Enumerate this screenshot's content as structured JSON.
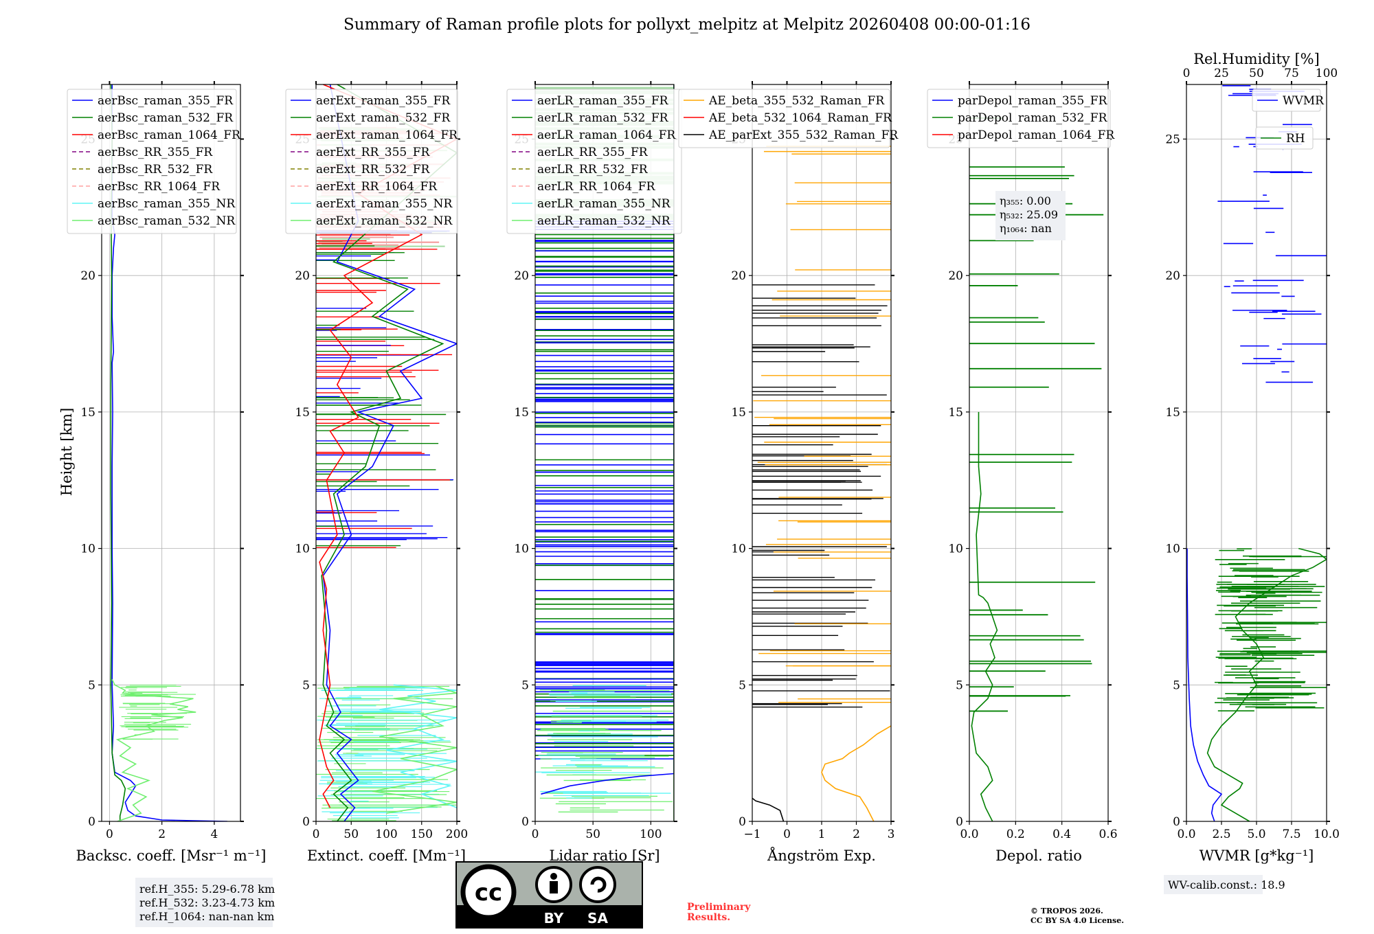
{
  "figure": {
    "title": "Summary of Raman profile plots for pollyxt_melpitz at Melpitz 20260408 00:00-01:16",
    "ylabel": "Height [km]",
    "ref_info": [
      "ref.H_355: 5.29-6.78 km",
      "ref.H_532: 3.23-4.73 km",
      "ref.H_1064: nan-nan km"
    ],
    "wv_calib": "WV-calib.const.: 18.9",
    "preliminary": [
      "Preliminary",
      "Results."
    ],
    "copyright": [
      "© TROPOS 2026.",
      "CC BY SA 4.0 License."
    ],
    "license_badge": {
      "cc": "cc",
      "by": "BY",
      "sa": "SA"
    },
    "colors": {
      "blue": "#0000ff",
      "green": "#008000",
      "red": "#ff0000",
      "purple": "#800080",
      "olive": "#808000",
      "salmon": "#ff9f9f",
      "cyan": "#5ff5f5",
      "lightgreen": "#6fef6f",
      "orange": "#ffa500",
      "magenta": "#ff00ff",
      "black": "#000000"
    }
  },
  "chart_data": [
    {
      "type": "line",
      "name": "backscatter",
      "xlabel": "Backsc. coeff. [Msr⁻¹ m⁻¹]",
      "xlim": [
        -0.3,
        5
      ],
      "xticks": [
        0,
        2,
        4
      ],
      "xtick_labels": [
        "0",
        "2",
        "4"
      ],
      "ylim": [
        0,
        27
      ],
      "yticks": [
        0,
        5,
        10,
        15,
        20,
        25
      ],
      "ytick_labels": [
        "0",
        "5",
        "10",
        "15",
        "20",
        "25"
      ],
      "legend": [
        "aerBsc_raman_355_FR",
        "aerBsc_raman_532_FR",
        "aerBsc_raman_1064_FR",
        "aerBsc_RR_355_FR",
        "aerBsc_RR_532_FR",
        "aerBsc_RR_1064_FR",
        "aerBsc_raman_355_NR",
        "aerBsc_raman_532_NR"
      ],
      "series": [
        {
          "name": "aerBsc_raman_355_FR",
          "x": [
            4.5,
            2.0,
            1.0,
            0.7,
            0.6,
            0.8,
            1.0,
            0.8,
            0.5,
            0.2,
            0.1,
            0.15,
            0.1,
            0.12,
            0.1,
            0.1,
            0.12,
            0.1,
            0.15,
            0.1,
            0.1,
            0.15,
            0.2,
            0.1,
            0.1
          ],
          "y": [
            0,
            0.05,
            0.2,
            0.4,
            0.7,
            1.0,
            1.3,
            1.5,
            1.65,
            1.8,
            2.5,
            3.5,
            5,
            8,
            10,
            13,
            15,
            16.8,
            17.2,
            18.5,
            20,
            21,
            21.5,
            22,
            27
          ]
        },
        {
          "name": "aerBsc_raman_532_FR",
          "x": [
            0.4,
            0.4,
            0.5,
            0.6,
            0.45,
            0.2,
            0.1,
            0.05,
            0.08,
            0.05,
            0.05,
            0.08,
            0.06,
            0.1,
            0.05
          ],
          "y": [
            0,
            0.2,
            0.6,
            1.2,
            1.5,
            1.7,
            2.5,
            5,
            8,
            12,
            16,
            20,
            22,
            25,
            27
          ]
        },
        {
          "name": "aerBsc_raman_532_NR",
          "x": [
            0.3,
            1.2,
            0.9,
            1.4,
            0.7,
            1.5,
            0.5,
            1.0,
            0.4,
            0.8,
            0.3,
            1.7,
            1.4,
            2.1,
            2.8,
            1.6,
            3.3,
            2.6,
            3.0,
            2.3,
            2.8,
            3.2,
            1.5,
            0.5,
            0.6,
            0.4,
            0.2,
            0.1
          ],
          "y": [
            0,
            0.3,
            0.6,
            0.9,
            1.2,
            1.5,
            1.8,
            2.1,
            2.4,
            2.7,
            3.0,
            3.3,
            3.5,
            3.7,
            3.8,
            3.9,
            4.0,
            4.1,
            4.2,
            4.3,
            4.4,
            4.5,
            4.6,
            4.7,
            4.8,
            4.9,
            5.0,
            5.2
          ]
        }
      ]
    },
    {
      "type": "line",
      "name": "extinction",
      "xlabel": "Extinct. coeff. [Mm⁻¹]",
      "xlim": [
        0,
        200
      ],
      "xticks": [
        0,
        50,
        100,
        150,
        200
      ],
      "xtick_labels": [
        "0",
        "50",
        "100",
        "150",
        "200"
      ],
      "ylim": [
        0,
        27
      ],
      "yticks": [
        0,
        5,
        10,
        15,
        20,
        25
      ],
      "ytick_labels": [
        "0",
        "5",
        "10",
        "15",
        "20",
        "25"
      ],
      "legend": [
        "aerExt_raman_355_FR",
        "aerExt_raman_532_FR",
        "aerExt_raman_1064_FR",
        "aerExt_RR_355_FR",
        "aerExt_RR_532_FR",
        "aerExt_RR_1064_FR",
        "aerExt_raman_355_NR",
        "aerExt_raman_532_NR"
      ],
      "series": [
        {
          "name": "aerExt_raman_355_FR",
          "x": [
            40,
            55,
            35,
            60,
            45,
            30,
            50,
            20,
            35,
            15,
            20,
            10,
            50,
            30,
            80,
            110,
            60,
            150,
            120,
            200,
            90,
            140,
            30,
            60,
            20
          ],
          "y": [
            0,
            0.5,
            1.0,
            1.5,
            2.0,
            2.5,
            3.0,
            3.5,
            4.0,
            5.0,
            7.0,
            9.0,
            10.5,
            12.0,
            13.0,
            14.5,
            15.0,
            15.5,
            16.5,
            17.5,
            18.5,
            19.5,
            20.5,
            22.0,
            27
          ]
        },
        {
          "name": "aerExt_raman_532_FR",
          "x": [
            30,
            45,
            25,
            50,
            35,
            20,
            40,
            15,
            25,
            10,
            15,
            8,
            40,
            25,
            70,
            90,
            50,
            120,
            100,
            180,
            80,
            130,
            25,
            200,
            30
          ],
          "y": [
            0,
            0.5,
            1.0,
            1.5,
            2.0,
            2.5,
            3.0,
            3.5,
            4.0,
            5.0,
            7.0,
            9.0,
            10.5,
            12.0,
            13.0,
            14.5,
            15.0,
            15.5,
            16.5,
            17.5,
            18.5,
            19.5,
            20.5,
            24.5,
            27
          ]
        },
        {
          "name": "aerExt_raman_1064_FR",
          "x": [
            20,
            10,
            25,
            15,
            10,
            5,
            20,
            10,
            15,
            5,
            30,
            15,
            40,
            20,
            60,
            30,
            50,
            20,
            80,
            40,
            150,
            60,
            200,
            10
          ],
          "y": [
            0.5,
            1.0,
            1.5,
            2.0,
            2.5,
            3.0,
            5.0,
            7.0,
            8.5,
            9.5,
            10.5,
            12.5,
            13.5,
            14.3,
            14.8,
            16.0,
            17.0,
            18.0,
            19.0,
            20.0,
            21.5,
            23.0,
            25.0,
            27
          ]
        },
        {
          "name": "aerExt_raman_355_NR",
          "x": [
            200,
            150,
            190,
            120,
            200,
            100,
            180,
            140,
            200,
            90,
            170,
            130,
            200,
            110
          ],
          "y": [
            0.5,
            1.0,
            1.3,
            1.8,
            2.2,
            2.6,
            3.0,
            3.4,
            3.8,
            4.1,
            4.4,
            4.6,
            4.8,
            5.0
          ]
        },
        {
          "name": "aerExt_raman_532_NR",
          "x": [
            100,
            200,
            80,
            160,
            200,
            120,
            200,
            90,
            180,
            150,
            200,
            110,
            200,
            170
          ],
          "y": [
            0.3,
            0.7,
            1.1,
            1.5,
            1.9,
            2.3,
            2.7,
            3.1,
            3.5,
            3.9,
            4.2,
            4.5,
            4.7,
            4.95
          ]
        }
      ]
    },
    {
      "type": "line",
      "name": "lidar_ratio",
      "xlabel": "Lidar ratio [Sr]",
      "xlim": [
        0,
        120
      ],
      "xticks": [
        0,
        50,
        100
      ],
      "xtick_labels": [
        "0",
        "50",
        "100"
      ],
      "ylim": [
        0,
        27
      ],
      "yticks": [
        0,
        5,
        10,
        15,
        20,
        25
      ],
      "ytick_labels": [
        "0",
        "5",
        "10",
        "15",
        "20",
        "25"
      ],
      "legend": [
        "aerLR_raman_355_FR",
        "aerLR_raman_532_FR",
        "aerLR_raman_1064_FR",
        "aerLR_RR_355_FR",
        "aerLR_RR_532_FR",
        "aerLR_RR_1064_FR",
        "aerLR_raman_355_NR",
        "aerLR_raman_532_NR"
      ],
      "series": [
        {
          "name": "aerLR_raman_355_FR",
          "x": [
            5,
            30,
            60,
            90,
            120,
            120
          ],
          "y": [
            1.0,
            1.3,
            1.5,
            1.65,
            1.75,
            27
          ]
        },
        {
          "name": "aerLR_raman_532_FR",
          "x": [
            120,
            120
          ],
          "y": [
            0,
            27
          ]
        }
      ]
    },
    {
      "type": "line",
      "name": "angstrom",
      "xlabel": "Ångström Exp.",
      "xlim": [
        -1,
        3
      ],
      "xticks": [
        -1,
        0,
        1,
        2,
        3
      ],
      "xtick_labels": [
        "−1",
        "0",
        "1",
        "2",
        "3"
      ],
      "ylim": [
        0,
        27
      ],
      "yticks": [
        0,
        5,
        10,
        15,
        20,
        25
      ],
      "ytick_labels": [
        "0",
        "5",
        "10",
        "15",
        "20",
        "25"
      ],
      "legend": [
        "AE_beta_355_532_Raman_FR",
        "AE_beta_532_1064_Raman_FR",
        "AE_parExt_355_532_Raman_FR"
      ],
      "series": [
        {
          "name": "AE_beta_355_532_Raman_FR",
          "x": [
            2.5,
            2.3,
            2.1,
            1.4,
            1.1,
            1.0,
            1.1,
            1.6,
            1.8,
            2.2,
            2.6,
            3.0
          ],
          "y": [
            0,
            0.5,
            0.9,
            1.2,
            1.5,
            1.8,
            2.1,
            2.3,
            2.5,
            2.8,
            3.2,
            3.5
          ]
        },
        {
          "name": "AE_parExt_355_532_Raman_FR",
          "x": [
            -0.1,
            -0.2,
            -0.5,
            -0.9,
            -1.0
          ],
          "y": [
            0,
            0.4,
            0.6,
            0.75,
            0.85
          ]
        }
      ]
    },
    {
      "type": "line",
      "name": "depolarization",
      "xlabel": "Depol. ratio",
      "xlim": [
        0,
        0.6
      ],
      "xticks": [
        0,
        0.2,
        0.4,
        0.6
      ],
      "xtick_labels": [
        "0.0",
        "0.2",
        "0.4",
        "0.6"
      ],
      "ylim": [
        0,
        27
      ],
      "yticks": [
        0,
        5,
        10,
        15,
        20,
        25
      ],
      "ytick_labels": [
        "0",
        "5",
        "10",
        "15",
        "20",
        "25"
      ],
      "legend": [
        "parDepol_raman_355_FR",
        "parDepol_raman_532_FR",
        "parDepol_raman_1064_FR"
      ],
      "annotation": [
        "η₃₅₅: 0.00",
        "η₅₃₂: 25.09",
        "η₁₀₆₄: nan"
      ],
      "series": [
        {
          "name": "parDepol_raman_532_FR",
          "x": [
            0.1,
            0.07,
            0.05,
            0.1,
            0.08,
            0.03,
            0.02,
            0.01,
            0.02,
            0.08,
            0.1,
            0.07,
            0.11,
            0.09,
            0.12,
            0.1,
            0.08,
            0.06,
            0.04,
            0.03,
            0.05,
            0.04,
            0.04
          ],
          "y": [
            0,
            0.5,
            1.0,
            1.5,
            2.0,
            2.5,
            3.0,
            3.5,
            4.0,
            4.5,
            5.0,
            5.5,
            6.0,
            6.5,
            7.0,
            7.5,
            8.0,
            8.2,
            8.3,
            10.5,
            12.0,
            13.0,
            15.0
          ]
        }
      ]
    },
    {
      "type": "line",
      "name": "water_vapor",
      "xlabel": "WVMR [g*kg⁻¹]",
      "xlim": [
        0,
        10
      ],
      "xticks": [
        0,
        2.5,
        5,
        7.5,
        10
      ],
      "xtick_labels": [
        "0.0",
        "2.5",
        "5.0",
        "7.5",
        "10.0"
      ],
      "x2label": "Rel.Humidity [%]",
      "x2lim": [
        0,
        100
      ],
      "x2ticks": [
        0,
        25,
        50,
        75,
        100
      ],
      "x2tick_labels": [
        "0",
        "25",
        "50",
        "75",
        "100"
      ],
      "ylim": [
        0,
        27
      ],
      "yticks": [
        0,
        5,
        10,
        15,
        20,
        25
      ],
      "ytick_labels": [
        "0",
        "5",
        "10",
        "15",
        "20",
        "25"
      ],
      "legend": [
        "WVMR",
        "RH"
      ],
      "series": [
        {
          "name": "WVMR",
          "x": [
            2.0,
            1.8,
            1.9,
            2.5,
            1.6,
            1.2,
            0.8,
            0.5,
            0.3,
            0.2,
            0.1,
            0.08,
            0.05,
            0.05
          ],
          "y": [
            0,
            0.3,
            0.6,
            1.0,
            1.3,
            1.7,
            2.2,
            2.8,
            3.5,
            4.5,
            6.0,
            7.5,
            9.0,
            10.0
          ]
        },
        {
          "name": "RH",
          "x": [
            45,
            35,
            25,
            30,
            38,
            40,
            30,
            20,
            15,
            18,
            25,
            35,
            42,
            50,
            45,
            55,
            50,
            40,
            35,
            45,
            60,
            75,
            90,
            100,
            95,
            80
          ],
          "y": [
            0,
            0.3,
            0.6,
            0.9,
            1.2,
            1.4,
            1.7,
            2.0,
            2.5,
            3.0,
            3.5,
            4.0,
            4.5,
            5.0,
            5.5,
            6.0,
            6.5,
            7.0,
            7.5,
            8.0,
            8.5,
            9.0,
            9.3,
            9.6,
            9.8,
            10.0
          ]
        }
      ]
    }
  ]
}
